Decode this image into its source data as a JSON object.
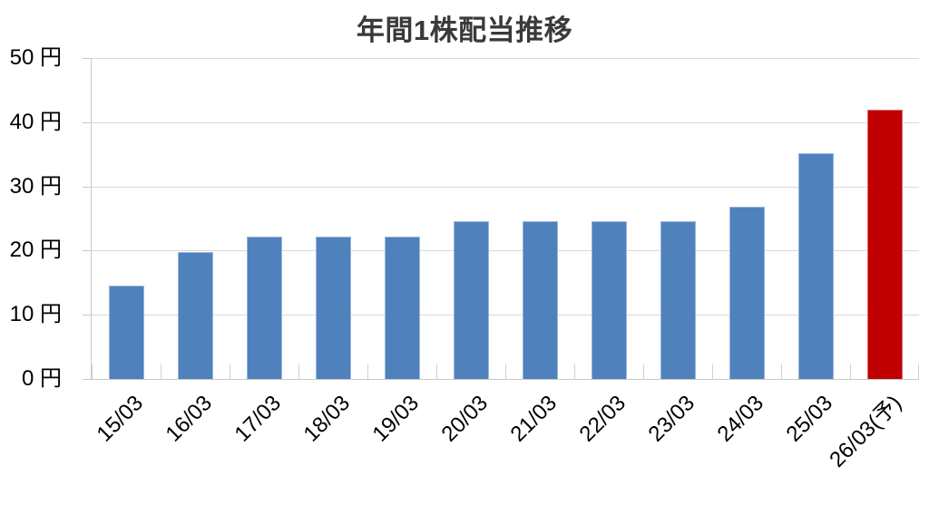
{
  "chart_data": {
    "type": "bar",
    "title": "年間1株配当推移",
    "categories": [
      "15/03",
      "16/03",
      "17/03",
      "18/03",
      "19/03",
      "20/03",
      "21/03",
      "22/03",
      "23/03",
      "24/03",
      "25/03",
      "26/03(予)"
    ],
    "values": [
      14.6,
      19.8,
      22.2,
      22.2,
      22.2,
      24.6,
      24.6,
      24.6,
      24.6,
      26.8,
      35.2,
      42
    ],
    "unit": "円",
    "ylim": [
      0,
      50
    ],
    "y_ticks": [
      0,
      10,
      20,
      30,
      40,
      50
    ],
    "xlabel": "",
    "ylabel": "",
    "grid": true,
    "legend": "none",
    "bar_color": "#4F81BD",
    "highlight_bar_color": "#C00000",
    "highlight_index": 11
  },
  "colors": {
    "background": "#FFFFFF",
    "grid": "#D9D9D9",
    "axis": "#C8C8C8",
    "title_text": "#3A3A3A",
    "tick_text": "#000000"
  }
}
